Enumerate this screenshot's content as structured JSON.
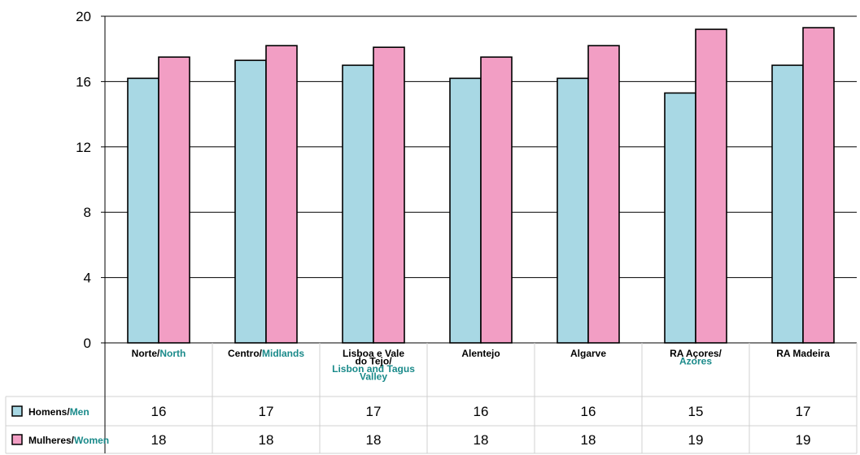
{
  "chart_data": {
    "type": "bar",
    "categories": [
      [
        "Norte/",
        "North"
      ],
      [
        "Centro/",
        "Midlands"
      ],
      [
        "Lisboa e Vale",
        "do Tejo/",
        "Lisbon and Tagus",
        "Valley"
      ],
      [
        "Alentejo"
      ],
      [
        "Algarve"
      ],
      [
        "RA Açores/",
        "Azores"
      ],
      [
        "RA Madeira"
      ]
    ],
    "series": [
      {
        "name": [
          "Homens/",
          "Men"
        ],
        "color": "#a8d8e4",
        "values": [
          16.2,
          17.3,
          17.0,
          16.2,
          16.2,
          15.3,
          17.0
        ],
        "table_values": [
          "16",
          "17",
          "17",
          "16",
          "16",
          "15",
          "17"
        ]
      },
      {
        "name": [
          "Mulheres/",
          "Women"
        ],
        "color": "#f29ec4",
        "values": [
          17.5,
          18.2,
          18.1,
          17.5,
          18.2,
          19.2,
          19.3
        ],
        "table_values": [
          "18",
          "18",
          "18",
          "18",
          "18",
          "19",
          "19"
        ]
      }
    ],
    "y_ticks": [
      "0",
      "4",
      "8",
      "12",
      "16",
      "20"
    ],
    "ylim": [
      0,
      20
    ],
    "grid": true,
    "legend": "data-table"
  }
}
